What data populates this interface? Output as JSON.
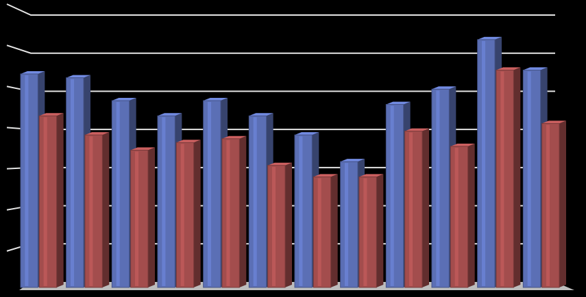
{
  "chart_data": {
    "type": "bar3d",
    "categories": [
      null,
      null,
      null,
      null,
      null,
      null,
      null,
      null,
      null,
      null,
      null,
      null
    ],
    "series": [
      {
        "color": "#5b6fb5",
        "values": [
          5.6,
          5.5,
          4.9,
          4.5,
          4.9,
          4.5,
          4.0,
          3.3,
          4.8,
          5.2,
          6.5,
          5.7
        ]
      },
      {
        "color": "#a34d4d",
        "values": [
          4.5,
          4.0,
          3.6,
          3.8,
          3.9,
          3.2,
          2.9,
          2.9,
          4.1,
          3.7,
          5.7,
          4.3
        ]
      }
    ],
    "ylim": [
      0,
      7
    ],
    "yticks": [
      1,
      2,
      3,
      4,
      5,
      6,
      7
    ],
    "grid": true
  }
}
